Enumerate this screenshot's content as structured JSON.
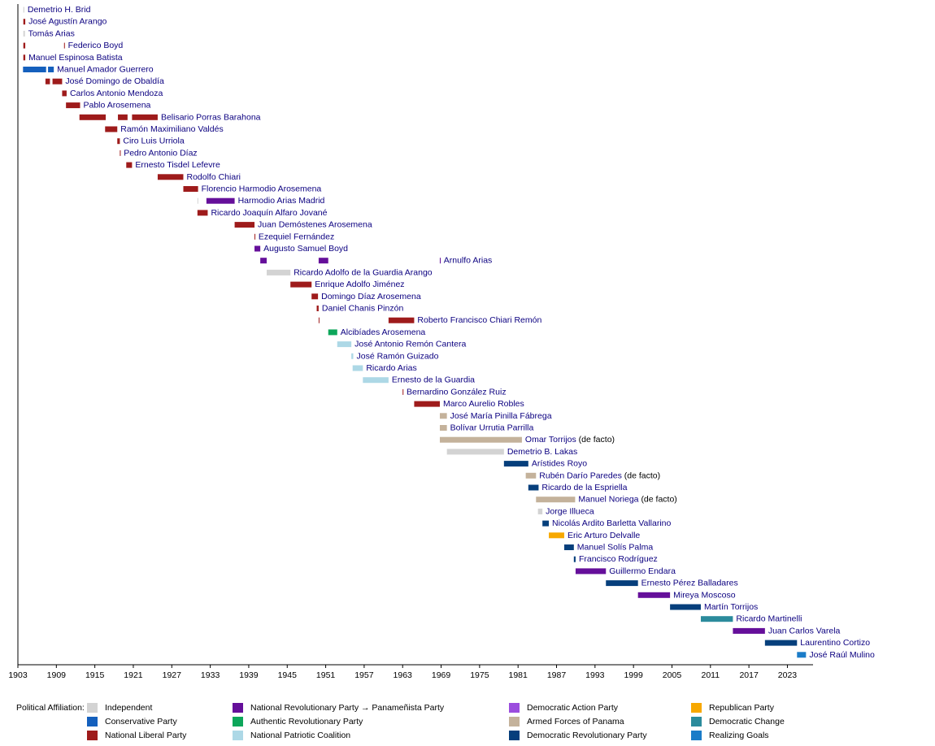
{
  "chart_data": {
    "type": "timeline",
    "legend_title": "Political Affiliation:",
    "xlim": [
      1903,
      2027
    ],
    "xticks": [
      1903,
      1909,
      1915,
      1921,
      1927,
      1933,
      1939,
      1945,
      1951,
      1957,
      1963,
      1969,
      1975,
      1981,
      1987,
      1993,
      1999,
      2005,
      2011,
      2017,
      2023
    ],
    "parties": [
      {
        "name": "Independent",
        "color": "#d3d3d3"
      },
      {
        "name": "Conservative Party",
        "color": "#1560bd"
      },
      {
        "name": "National Liberal Party",
        "color": "#9e1b1b"
      },
      {
        "name": "National Revolutionary Party → Panameñista Party",
        "color": "#650f9a"
      },
      {
        "name": "Authentic Revolutionary Party",
        "color": "#0da65a"
      },
      {
        "name": "National Patriotic Coalition",
        "color": "#add8e6"
      },
      {
        "name": "Democratic Action Party",
        "color": "#9b4dde"
      },
      {
        "name": "Armed Forces of Panama",
        "color": "#c4b29b"
      },
      {
        "name": "Democratic Revolutionary Party",
        "color": "#063f7c"
      },
      {
        "name": "Republican Party",
        "color": "#f7a800"
      },
      {
        "name": "Democratic Change",
        "color": "#2b8b9c"
      },
      {
        "name": "Realizing Goals",
        "color": "#1b7cc8"
      }
    ],
    "rows": [
      {
        "name": "Demetrio H. Brid",
        "terms": [
          {
            "start": 1903.85,
            "end": 1904.0,
            "party": 0
          }
        ]
      },
      {
        "name": "José Agustín Arango",
        "terms": [
          {
            "start": 1903.85,
            "end": 1904.15,
            "party": 2
          }
        ]
      },
      {
        "name": "Tomás Arias",
        "terms": [
          {
            "start": 1903.85,
            "end": 1904.1,
            "party": 0
          }
        ]
      },
      {
        "name": "Federico Boyd",
        "terms": [
          {
            "start": 1903.85,
            "end": 1904.15,
            "party": 2
          },
          {
            "start": 1910.2,
            "end": 1910.3,
            "party": 2
          }
        ]
      },
      {
        "name": "Manuel Espinosa Batista",
        "terms": [
          {
            "start": 1903.85,
            "end": 1904.15,
            "party": 2
          }
        ]
      },
      {
        "name": "Manuel Amador Guerrero",
        "terms": [
          {
            "start": 1903.8,
            "end": 1907.4,
            "party": 1
          },
          {
            "start": 1907.7,
            "end": 1908.6,
            "party": 1
          }
        ]
      },
      {
        "name": "José Domingo de Obaldía",
        "terms": [
          {
            "start": 1907.3,
            "end": 1908.0,
            "party": 2
          },
          {
            "start": 1908.4,
            "end": 1909.9,
            "party": 2
          }
        ]
      },
      {
        "name": "Carlos Antonio Mendoza",
        "terms": [
          {
            "start": 1909.9,
            "end": 1910.6,
            "party": 2
          }
        ]
      },
      {
        "name": "Pablo Arosemena",
        "terms": [
          {
            "start": 1910.5,
            "end": 1912.7,
            "party": 2
          }
        ]
      },
      {
        "name": "Belisario Porras Barahona",
        "terms": [
          {
            "start": 1912.6,
            "end": 1916.7,
            "party": 2
          },
          {
            "start": 1918.6,
            "end": 1920.1,
            "party": 2
          },
          {
            "start": 1920.8,
            "end": 1924.8,
            "party": 2
          }
        ]
      },
      {
        "name": "Ramón Maximiliano Valdés",
        "terms": [
          {
            "start": 1916.6,
            "end": 1918.5,
            "party": 2
          }
        ]
      },
      {
        "name": "Ciro Luis Urriola",
        "terms": [
          {
            "start": 1918.5,
            "end": 1918.9,
            "party": 2
          }
        ]
      },
      {
        "name": "Pedro Antonio Díaz",
        "terms": [
          {
            "start": 1918.9,
            "end": 1919.0,
            "party": 2
          }
        ]
      },
      {
        "name": "Ernesto Tisdel Lefevre",
        "terms": [
          {
            "start": 1919.9,
            "end": 1920.8,
            "party": 2
          }
        ]
      },
      {
        "name": "Rodolfo Chiari",
        "terms": [
          {
            "start": 1924.8,
            "end": 1928.8,
            "party": 2
          }
        ]
      },
      {
        "name": "Florencio Harmodio Arosemena",
        "terms": [
          {
            "start": 1928.8,
            "end": 1931.1,
            "party": 2
          }
        ]
      },
      {
        "name": "Harmodio Arias Madrid",
        "terms": [
          {
            "start": 1931.0,
            "end": 1931.1,
            "party": 0
          },
          {
            "start": 1932.4,
            "end": 1936.8,
            "party": 3
          }
        ]
      },
      {
        "name": "Ricardo Joaquín Alfaro Jované",
        "terms": [
          {
            "start": 1931.0,
            "end": 1932.6,
            "party": 2
          }
        ]
      },
      {
        "name": "Juan Demóstenes Arosemena",
        "terms": [
          {
            "start": 1936.8,
            "end": 1939.9,
            "party": 2
          }
        ]
      },
      {
        "name": "Ezequiel Fernández",
        "terms": [
          {
            "start": 1939.9,
            "end": 1940.0,
            "party": 2
          }
        ]
      },
      {
        "name": "Augusto Samuel Boyd",
        "terms": [
          {
            "start": 1939.9,
            "end": 1940.8,
            "party": 3
          }
        ]
      },
      {
        "name": "Arnulfo Arias",
        "terms": [
          {
            "start": 1940.8,
            "end": 1941.8,
            "party": 3
          },
          {
            "start": 1949.9,
            "end": 1951.4,
            "party": 3
          },
          {
            "start": 1968.8,
            "end": 1968.9,
            "party": 3
          }
        ]
      },
      {
        "name": "Ricardo Adolfo de la Guardia Arango",
        "terms": [
          {
            "start": 1941.8,
            "end": 1945.5,
            "party": 0
          }
        ]
      },
      {
        "name": "Enrique Adolfo Jiménez",
        "terms": [
          {
            "start": 1945.5,
            "end": 1948.8,
            "party": 2
          }
        ]
      },
      {
        "name": "Domingo Díaz Arosemena",
        "terms": [
          {
            "start": 1948.8,
            "end": 1949.8,
            "party": 2
          }
        ]
      },
      {
        "name": "Daniel Chanis Pinzón",
        "terms": [
          {
            "start": 1949.6,
            "end": 1949.9,
            "party": 2
          }
        ]
      },
      {
        "name": "Roberto Francisco Chiari Remón",
        "terms": [
          {
            "start": 1949.9,
            "end": 1950.0,
            "party": 2
          },
          {
            "start": 1960.8,
            "end": 1964.8,
            "party": 2
          }
        ]
      },
      {
        "name": "Alcibíades Arosemena",
        "terms": [
          {
            "start": 1951.4,
            "end": 1952.8,
            "party": 4
          }
        ]
      },
      {
        "name": "José Antonio Remón Cantera",
        "terms": [
          {
            "start": 1952.8,
            "end": 1955.0,
            "party": 5
          }
        ]
      },
      {
        "name": "José Ramón Guizado",
        "terms": [
          {
            "start": 1955.0,
            "end": 1955.3,
            "party": 5
          }
        ]
      },
      {
        "name": "Ricardo Arias",
        "terms": [
          {
            "start": 1955.2,
            "end": 1956.8,
            "party": 5
          }
        ]
      },
      {
        "name": "Ernesto de la Guardia",
        "terms": [
          {
            "start": 1956.8,
            "end": 1960.8,
            "party": 5
          }
        ]
      },
      {
        "name": "Bernardino González Ruiz",
        "terms": [
          {
            "start": 1963.0,
            "end": 1963.1,
            "party": 2
          }
        ]
      },
      {
        "name": "Marco Aurelio Robles",
        "terms": [
          {
            "start": 1964.8,
            "end": 1968.8,
            "party": 2
          }
        ]
      },
      {
        "name": "José María Pinilla Fábrega",
        "terms": [
          {
            "start": 1968.8,
            "end": 1969.9,
            "party": 7
          }
        ]
      },
      {
        "name": "Bolívar Urrutia Parrilla",
        "terms": [
          {
            "start": 1968.8,
            "end": 1969.9,
            "party": 7
          }
        ]
      },
      {
        "name": "Omar Torrijos",
        "note": "(de facto)",
        "terms": [
          {
            "start": 1968.8,
            "end": 1981.6,
            "party": 7
          }
        ]
      },
      {
        "name": "Demetrio B. Lakas",
        "terms": [
          {
            "start": 1969.9,
            "end": 1978.8,
            "party": 0
          }
        ]
      },
      {
        "name": "Arístides Royo",
        "terms": [
          {
            "start": 1978.8,
            "end": 1982.6,
            "party": 8
          }
        ]
      },
      {
        "name": "Rubén Darío Paredes",
        "note": "(de facto)",
        "terms": [
          {
            "start": 1982.2,
            "end": 1983.8,
            "party": 7
          }
        ]
      },
      {
        "name": "Ricardo de la Espriella",
        "terms": [
          {
            "start": 1982.6,
            "end": 1984.2,
            "party": 8
          }
        ]
      },
      {
        "name": "Manuel Noriega",
        "note": "(de facto)",
        "terms": [
          {
            "start": 1983.8,
            "end": 1989.9,
            "party": 7
          }
        ]
      },
      {
        "name": "Jorge Illueca",
        "terms": [
          {
            "start": 1984.1,
            "end": 1984.8,
            "party": 0
          }
        ]
      },
      {
        "name": "Nicolás Ardito Barletta Vallarino",
        "terms": [
          {
            "start": 1984.8,
            "end": 1985.8,
            "party": 8
          }
        ]
      },
      {
        "name": "Eric Arturo Delvalle",
        "terms": [
          {
            "start": 1985.8,
            "end": 1988.2,
            "party": 9
          }
        ]
      },
      {
        "name": "Manuel Solís Palma",
        "terms": [
          {
            "start": 1988.2,
            "end": 1989.7,
            "party": 8
          }
        ]
      },
      {
        "name": "Francisco Rodríguez",
        "terms": [
          {
            "start": 1989.7,
            "end": 1989.97,
            "party": 8
          }
        ]
      },
      {
        "name": "Guillermo Endara",
        "terms": [
          {
            "start": 1989.97,
            "end": 1994.7,
            "party": 3
          }
        ]
      },
      {
        "name": "Ernesto Pérez Balladares",
        "terms": [
          {
            "start": 1994.7,
            "end": 1999.7,
            "party": 8
          }
        ]
      },
      {
        "name": "Mireya Moscoso",
        "terms": [
          {
            "start": 1999.7,
            "end": 2004.7,
            "party": 3
          }
        ]
      },
      {
        "name": "Martín Torrijos",
        "terms": [
          {
            "start": 2004.7,
            "end": 2009.5,
            "party": 8
          }
        ]
      },
      {
        "name": "Ricardo Martinelli",
        "terms": [
          {
            "start": 2009.5,
            "end": 2014.5,
            "party": 10
          }
        ]
      },
      {
        "name": "Juan Carlos Varela",
        "terms": [
          {
            "start": 2014.5,
            "end": 2019.5,
            "party": 3
          }
        ]
      },
      {
        "name": "Laurentino Cortizo",
        "terms": [
          {
            "start": 2019.5,
            "end": 2024.5,
            "party": 8
          }
        ]
      },
      {
        "name": "José Raúl Mulino",
        "terms": [
          {
            "start": 2024.5,
            "end": 2025.9,
            "party": 11
          }
        ]
      }
    ]
  }
}
